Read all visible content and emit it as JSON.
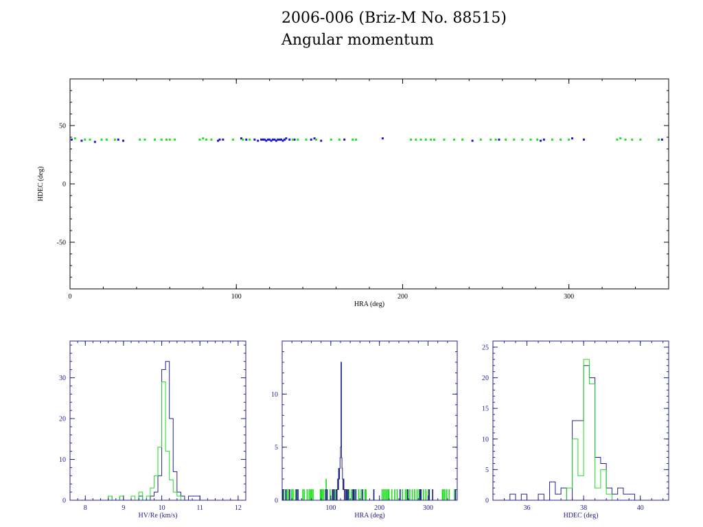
{
  "figure": {
    "title_line1": "2006-006 (Briz-M No. 88515)",
    "title_line2": "Angular momentum"
  },
  "colors": {
    "series_a": "#1818c8",
    "series_b": "#22dd22",
    "frame": "#000000",
    "hist_frame": "#20208a"
  },
  "chart_data": [
    {
      "type": "scatter",
      "xlabel": "HRA (deg)",
      "ylabel": "HDEC (deg)",
      "xlim": [
        0,
        360
      ],
      "ylim": [
        -90,
        90
      ],
      "xticks": [
        0,
        100,
        200,
        300
      ],
      "yticks": [
        -50,
        0,
        50
      ],
      "grid": false,
      "series": [
        {
          "color": "#1818c8",
          "points": [
            [
              1,
              38
            ],
            [
              7,
              37
            ],
            [
              15,
              36
            ],
            [
              29,
              38
            ],
            [
              32,
              37
            ],
            [
              89,
              37
            ],
            [
              90,
              38
            ],
            [
              92,
              38
            ],
            [
              103,
              39
            ],
            [
              106,
              38
            ],
            [
              111,
              38
            ],
            [
              113,
              37
            ],
            [
              115,
              38
            ],
            [
              116,
              38
            ],
            [
              117,
              38
            ],
            [
              118,
              37
            ],
            [
              119,
              38
            ],
            [
              120,
              38
            ],
            [
              121,
              37
            ],
            [
              122,
              38
            ],
            [
              123,
              38
            ],
            [
              124,
              37
            ],
            [
              125,
              38
            ],
            [
              126,
              38
            ],
            [
              127,
              38
            ],
            [
              128,
              37
            ],
            [
              129,
              38
            ],
            [
              130,
              39
            ],
            [
              132,
              38
            ],
            [
              135,
              38
            ],
            [
              145,
              38
            ],
            [
              147,
              39
            ],
            [
              151,
              37
            ],
            [
              165,
              38
            ],
            [
              188,
              39
            ],
            [
              242,
              37
            ],
            [
              258,
              38
            ],
            [
              283,
              37
            ],
            [
              285,
              38
            ],
            [
              302,
              39
            ],
            [
              309,
              38
            ],
            [
              356,
              38
            ]
          ]
        },
        {
          "color": "#22dd22",
          "points": [
            [
              3,
              39
            ],
            [
              9,
              38
            ],
            [
              12,
              38
            ],
            [
              19,
              38
            ],
            [
              22,
              38
            ],
            [
              27,
              38
            ],
            [
              42,
              38
            ],
            [
              45,
              38
            ],
            [
              51,
              38
            ],
            [
              55,
              38
            ],
            [
              58,
              38
            ],
            [
              60,
              38
            ],
            [
              63,
              38
            ],
            [
              78,
              38
            ],
            [
              80,
              39
            ],
            [
              82,
              38
            ],
            [
              85,
              38
            ],
            [
              98,
              38
            ],
            [
              104,
              38
            ],
            [
              108,
              38
            ],
            [
              134,
              38
            ],
            [
              137,
              38
            ],
            [
              142,
              38
            ],
            [
              148,
              38
            ],
            [
              157,
              38
            ],
            [
              162,
              38
            ],
            [
              170,
              38
            ],
            [
              172,
              38
            ],
            [
              205,
              38
            ],
            [
              208,
              38
            ],
            [
              211,
              38
            ],
            [
              214,
              38
            ],
            [
              217,
              38
            ],
            [
              219,
              38
            ],
            [
              225,
              38
            ],
            [
              231,
              38
            ],
            [
              236,
              38
            ],
            [
              247,
              38
            ],
            [
              253,
              38
            ],
            [
              256,
              38
            ],
            [
              262,
              38
            ],
            [
              267,
              38
            ],
            [
              272,
              38
            ],
            [
              277,
              38
            ],
            [
              281,
              38
            ],
            [
              290,
              38
            ],
            [
              295,
              38
            ],
            [
              300,
              38
            ],
            [
              329,
              38
            ],
            [
              331,
              39
            ],
            [
              334,
              38
            ],
            [
              338,
              38
            ],
            [
              343,
              38
            ],
            [
              354,
              38
            ]
          ]
        }
      ]
    },
    {
      "type": "histogram",
      "xlabel": "HV/Re (km/s)",
      "ylabel": "",
      "xlim": [
        7.6,
        12.2
      ],
      "ylim": [
        0,
        39
      ],
      "xticks": [
        8,
        9,
        10,
        11,
        12
      ],
      "yticks": [
        0,
        10,
        20,
        30
      ],
      "bin_width": 0.1,
      "series": [
        {
          "color": "#20208a",
          "bins": [
            [
              8.6,
              1
            ],
            [
              8.9,
              1
            ],
            [
              9.4,
              1
            ],
            [
              9.7,
              1
            ],
            [
              9.8,
              2
            ],
            [
              9.9,
              6
            ],
            [
              10.0,
              32
            ],
            [
              10.1,
              34
            ],
            [
              10.2,
              20
            ],
            [
              10.3,
              7
            ],
            [
              10.4,
              2
            ],
            [
              10.5,
              1
            ],
            [
              10.7,
              1
            ],
            [
              10.8,
              1
            ],
            [
              10.9,
              1
            ]
          ]
        },
        {
          "color": "#22dd22",
          "bins": [
            [
              8.6,
              1
            ],
            [
              8.9,
              1
            ],
            [
              9.2,
              1
            ],
            [
              9.4,
              2
            ],
            [
              9.6,
              1
            ],
            [
              9.7,
              3
            ],
            [
              9.8,
              6
            ],
            [
              9.9,
              13
            ],
            [
              10.0,
              29
            ],
            [
              10.1,
              12
            ],
            [
              10.2,
              5
            ],
            [
              10.3,
              2
            ],
            [
              10.4,
              1
            ]
          ]
        }
      ]
    },
    {
      "type": "histogram",
      "xlabel": "HRA (deg)",
      "ylabel": "",
      "xlim": [
        0,
        360
      ],
      "ylim": [
        0,
        15
      ],
      "xticks": [
        100,
        200,
        300
      ],
      "yticks": [
        0,
        5,
        10
      ],
      "bin_width": 1,
      "series": [
        {
          "color": "#22dd22",
          "bins": [
            [
              3,
              1
            ],
            [
              9,
              1
            ],
            [
              12,
              1
            ],
            [
              19,
              1
            ],
            [
              22,
              1
            ],
            [
              27,
              1
            ],
            [
              42,
              1
            ],
            [
              45,
              1
            ],
            [
              51,
              1
            ],
            [
              55,
              1
            ],
            [
              58,
              1
            ],
            [
              60,
              1
            ],
            [
              63,
              1
            ],
            [
              78,
              1
            ],
            [
              80,
              1
            ],
            [
              82,
              1
            ],
            [
              85,
              1
            ],
            [
              90,
              2
            ],
            [
              98,
              1
            ],
            [
              104,
              1
            ],
            [
              108,
              1
            ],
            [
              134,
              1
            ],
            [
              137,
              1
            ],
            [
              142,
              1
            ],
            [
              148,
              1
            ],
            [
              157,
              1
            ],
            [
              162,
              1
            ],
            [
              170,
              1
            ],
            [
              172,
              1
            ],
            [
              205,
              1
            ],
            [
              208,
              1
            ],
            [
              211,
              1
            ],
            [
              214,
              1
            ],
            [
              217,
              1
            ],
            [
              219,
              1
            ],
            [
              225,
              1
            ],
            [
              231,
              1
            ],
            [
              236,
              1
            ],
            [
              247,
              1
            ],
            [
              253,
              1
            ],
            [
              256,
              1
            ],
            [
              262,
              1
            ],
            [
              267,
              1
            ],
            [
              272,
              1
            ],
            [
              277,
              1
            ],
            [
              281,
              1
            ],
            [
              290,
              1
            ],
            [
              295,
              1
            ],
            [
              300,
              1
            ],
            [
              329,
              1
            ],
            [
              331,
              1
            ],
            [
              334,
              1
            ],
            [
              338,
              1
            ],
            [
              343,
              1
            ],
            [
              354,
              1
            ]
          ]
        },
        {
          "color": "#20208a",
          "bins": [
            [
              1,
              1
            ],
            [
              7,
              1
            ],
            [
              15,
              1
            ],
            [
              29,
              1
            ],
            [
              32,
              1
            ],
            [
              89,
              1
            ],
            [
              92,
              1
            ],
            [
              103,
              1
            ],
            [
              106,
              1
            ],
            [
              111,
              1
            ],
            [
              113,
              1
            ],
            [
              114,
              2
            ],
            [
              115,
              1
            ],
            [
              116,
              3
            ],
            [
              117,
              2
            ],
            [
              118,
              3
            ],
            [
              119,
              4
            ],
            [
              120,
              5
            ],
            [
              121,
              13
            ],
            [
              122,
              4
            ],
            [
              123,
              3
            ],
            [
              124,
              2
            ],
            [
              125,
              1
            ],
            [
              126,
              2
            ],
            [
              127,
              1
            ],
            [
              129,
              1
            ],
            [
              130,
              1
            ],
            [
              132,
              1
            ],
            [
              135,
              1
            ],
            [
              145,
              1
            ],
            [
              147,
              1
            ],
            [
              151,
              1
            ],
            [
              165,
              1
            ],
            [
              188,
              1
            ],
            [
              242,
              1
            ],
            [
              258,
              1
            ],
            [
              283,
              1
            ],
            [
              285,
              1
            ],
            [
              302,
              1
            ],
            [
              309,
              1
            ],
            [
              356,
              1
            ]
          ]
        }
      ]
    },
    {
      "type": "histogram",
      "xlabel": "HDEC (deg)",
      "ylabel": "",
      "xlim": [
        34.8,
        41
      ],
      "ylim": [
        0,
        26
      ],
      "xticks": [
        36,
        38,
        40
      ],
      "yticks": [
        0,
        5,
        10,
        15,
        20,
        25
      ],
      "bin_width": 0.2,
      "series": [
        {
          "color": "#20208a",
          "bins": [
            [
              35.4,
              1
            ],
            [
              35.8,
              1
            ],
            [
              36.4,
              1
            ],
            [
              36.8,
              3
            ],
            [
              37.0,
              1
            ],
            [
              37.2,
              2
            ],
            [
              37.6,
              13
            ],
            [
              37.8,
              13
            ],
            [
              38.0,
              22
            ],
            [
              38.2,
              20
            ],
            [
              38.4,
              7
            ],
            [
              38.6,
              6
            ],
            [
              38.8,
              2
            ],
            [
              39.0,
              1
            ],
            [
              39.2,
              2
            ],
            [
              39.4,
              1
            ],
            [
              39.6,
              1
            ]
          ]
        },
        {
          "color": "#22dd22",
          "bins": [
            [
              37.4,
              2
            ],
            [
              37.6,
              10
            ],
            [
              37.8,
              4
            ],
            [
              38.0,
              23
            ],
            [
              38.2,
              19
            ],
            [
              38.4,
              2
            ],
            [
              38.6,
              5
            ],
            [
              38.8,
              1
            ]
          ]
        }
      ]
    }
  ]
}
